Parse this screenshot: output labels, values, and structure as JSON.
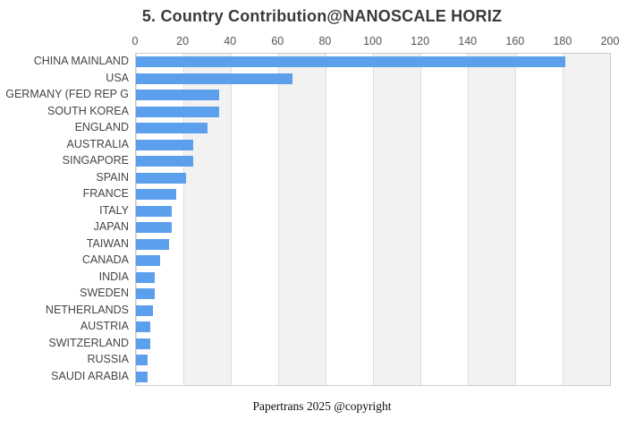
{
  "title": "5. Country Contribution@NANOSCALE HORIZ",
  "footer": "Papertrans 2025 @copyright",
  "colors": {
    "bar": "#5b9fed",
    "band": "#f2f2f2",
    "gridline": "#dedede",
    "plot_border": "#cccccc",
    "title_text": "#3a3a3a",
    "axis_text": "#555555"
  },
  "chart_data": {
    "type": "bar",
    "orientation": "horizontal",
    "title": "5. Country Contribution@NANOSCALE HORIZ",
    "xlabel": "",
    "ylabel": "",
    "xlim": [
      0,
      200
    ],
    "xticks": [
      0,
      20,
      40,
      60,
      80,
      100,
      120,
      140,
      160,
      180,
      200
    ],
    "grid": "vertical gridlines with alternating shaded bands every 20 units",
    "legend": "none",
    "categories": [
      "CHINA MAINLAND",
      "USA",
      "GERMANY (FED REP G",
      "SOUTH KOREA",
      "ENGLAND",
      "AUSTRALIA",
      "SINGAPORE",
      "SPAIN",
      "FRANCE",
      "ITALY",
      "JAPAN",
      "TAIWAN",
      "CANADA",
      "INDIA",
      "SWEDEN",
      "NETHERLANDS",
      "AUSTRIA",
      "SWITZERLAND",
      "RUSSIA",
      "SAUDI ARABIA"
    ],
    "values": [
      181,
      66,
      35,
      35,
      30,
      24,
      24,
      21,
      17,
      15,
      15,
      14,
      10,
      8,
      8,
      7,
      6,
      6,
      5,
      5
    ]
  }
}
